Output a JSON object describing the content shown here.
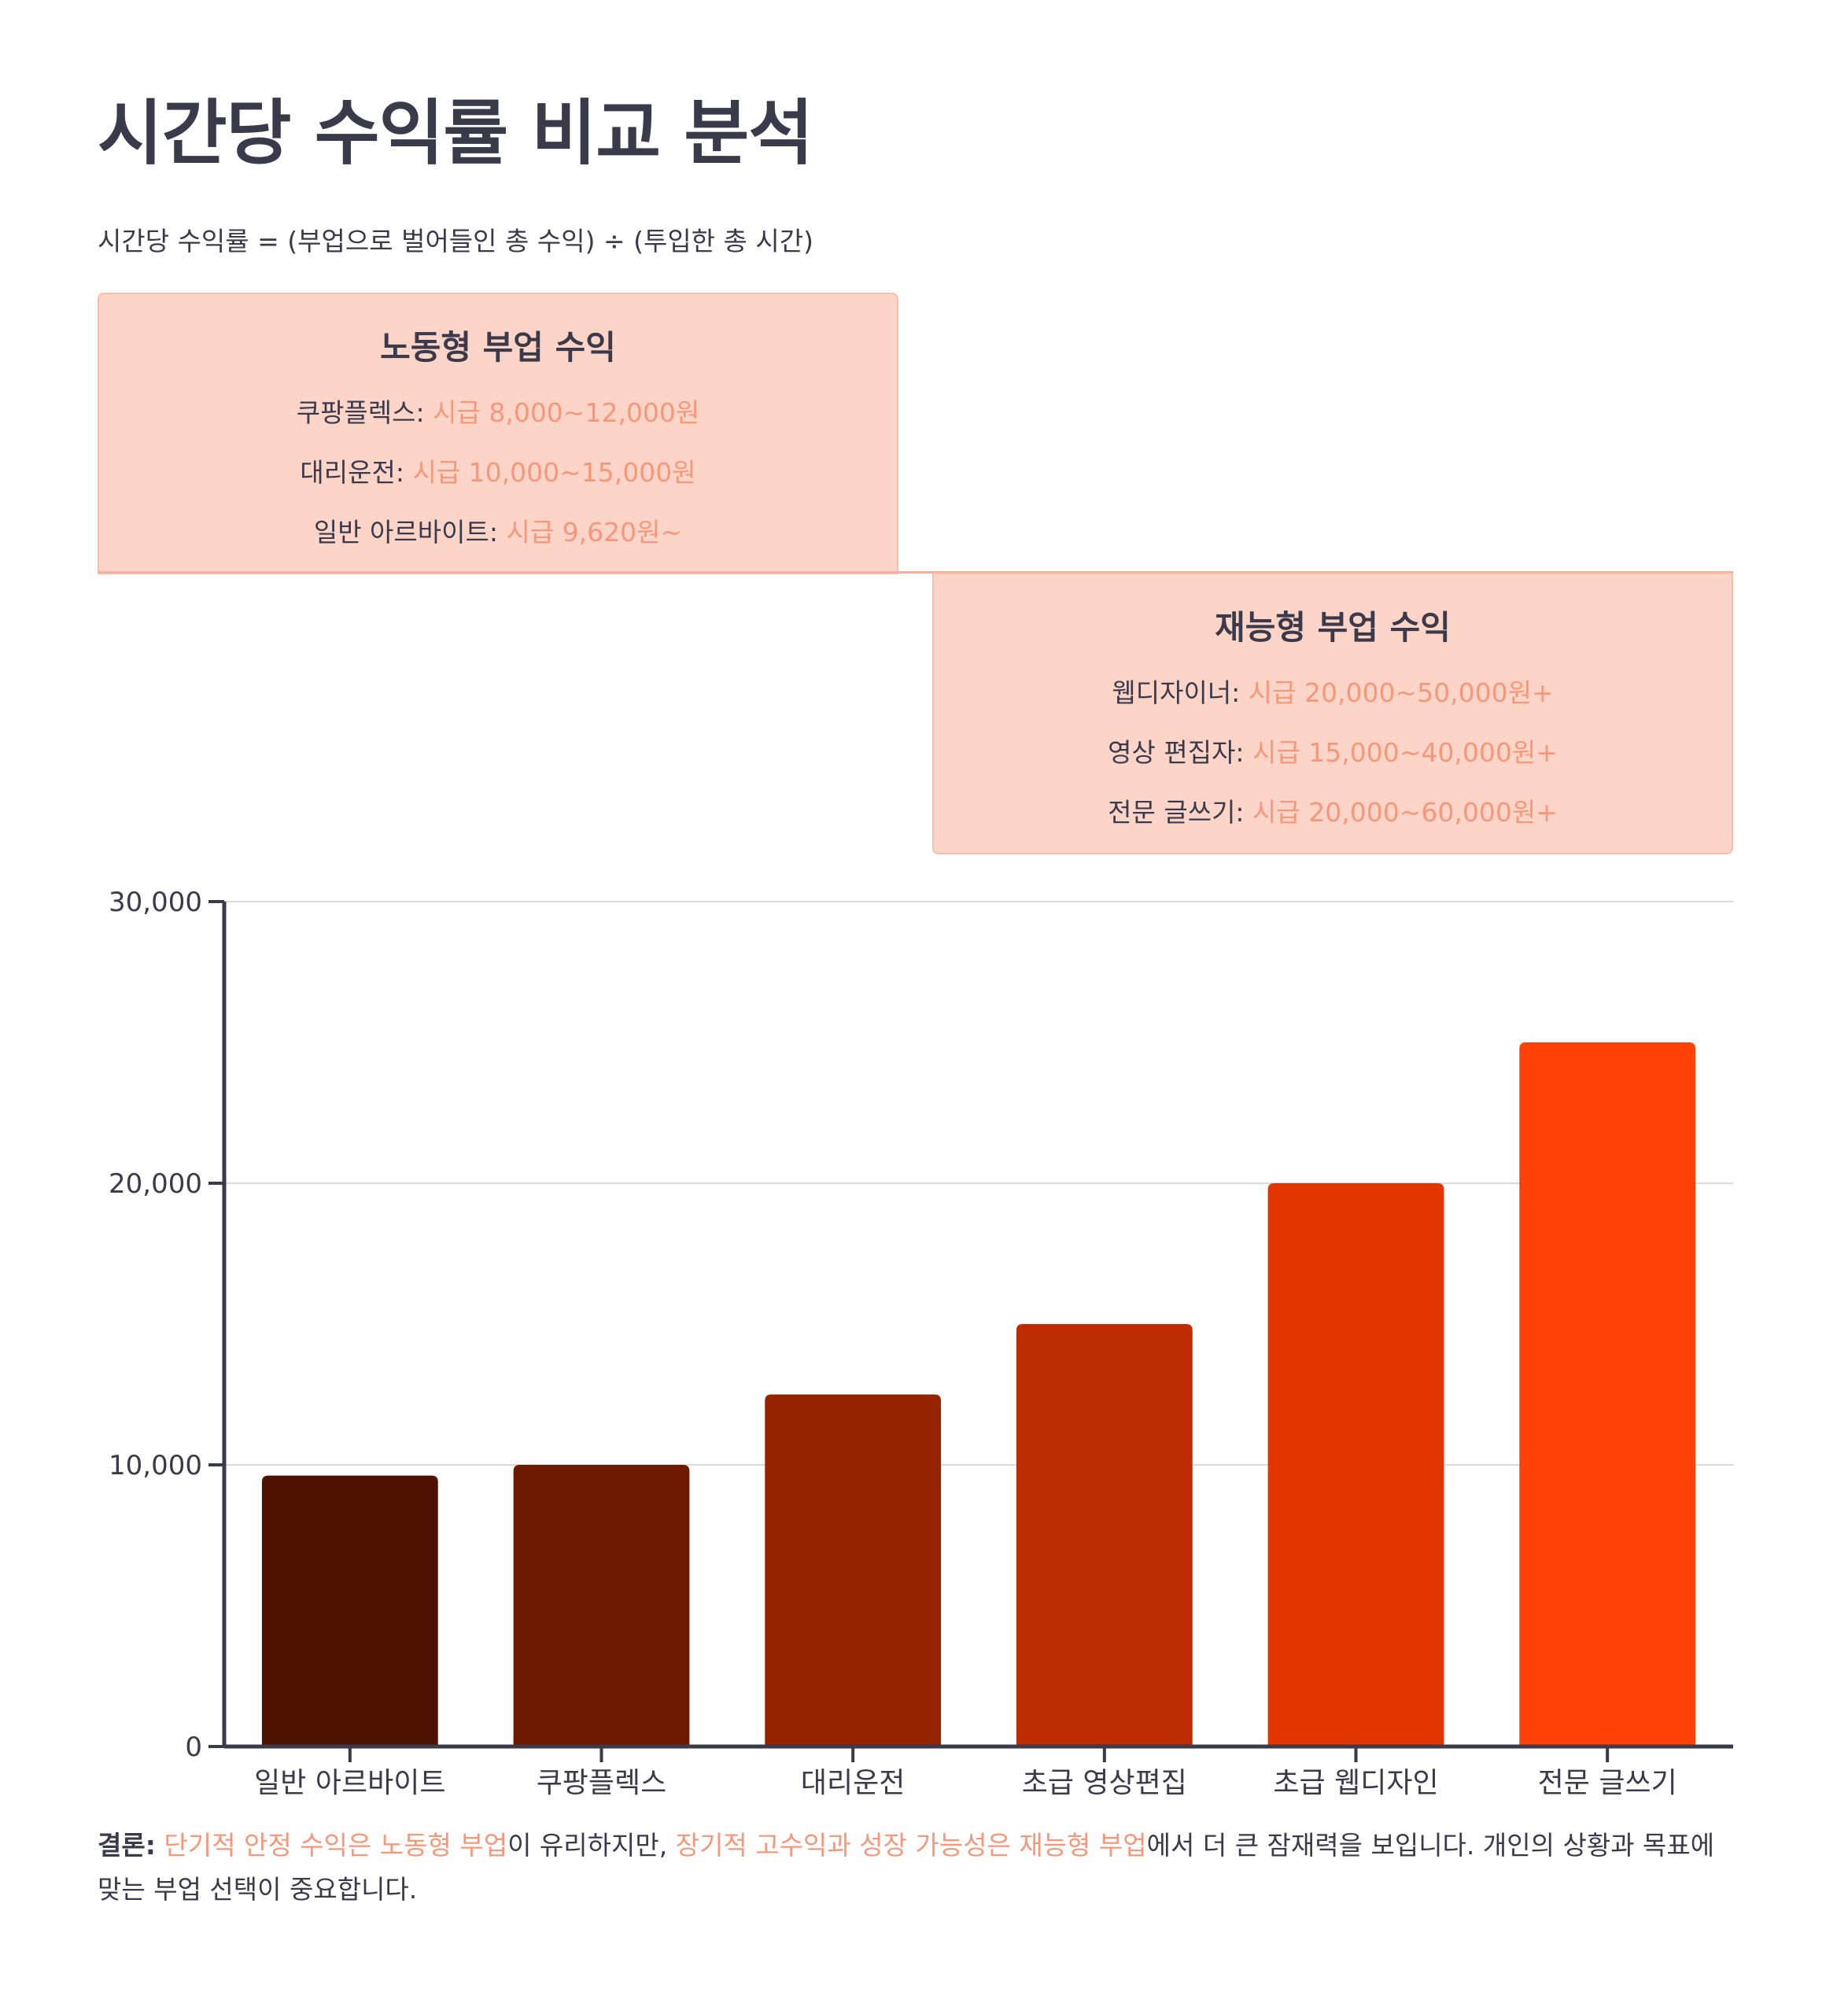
{
  "title": "시간당 수익률 비교 분석",
  "formula": "시간당 수익률 = (부업으로 벌어들인 총 수익) ÷ (투입한 총 시간)",
  "labor_card": {
    "title": "노동형 부업 수익",
    "items": [
      {
        "label": "쿠팡플렉스: ",
        "value": "시급 8,000~12,000원"
      },
      {
        "label": "대리운전: ",
        "value": "시급 10,000~15,000원"
      },
      {
        "label": "일반 아르바이트: ",
        "value": "시급 9,620원~"
      }
    ]
  },
  "talent_card": {
    "title": "재능형 부업 수익",
    "items": [
      {
        "label": "웹디자이너: ",
        "value": "시급 20,000~50,000원+"
      },
      {
        "label": "영상 편집자: ",
        "value": "시급 15,000~40,000원+"
      },
      {
        "label": "전문 글쓰기: ",
        "value": "시급 20,000~60,000원+"
      }
    ]
  },
  "colors": {
    "card_bg": "#fdd5c8",
    "highlight": "#f7977a",
    "text": "#3b3a4a",
    "axis": "#3b3a4a",
    "grid": "#d9d9d9"
  },
  "chart_data": {
    "type": "bar",
    "categories": [
      "일반 아르바이트",
      "쿠팡플렉스",
      "대리운전",
      "초급 영상편집",
      "초급 웹디자인",
      "전문 글쓰기"
    ],
    "values": [
      9620,
      10000,
      12500,
      15000,
      20000,
      25000
    ],
    "bar_colors": [
      "#4d1200",
      "#6e1a00",
      "#962300",
      "#bd2c00",
      "#e33500",
      "#ff4107"
    ],
    "ylim": [
      0,
      30000
    ],
    "yticks": [
      0,
      10000,
      20000,
      30000
    ],
    "ytick_labels": [
      "0",
      "10,000",
      "20,000",
      "30,000"
    ],
    "grid": true,
    "title": "",
    "xlabel": "",
    "ylabel": ""
  },
  "conclusion": {
    "lead": "결론:",
    "parts": [
      {
        "text": " ",
        "hl": false
      },
      {
        "text": "단기적 안정 수익은 노동형 부업",
        "hl": true
      },
      {
        "text": "이 유리하지만, ",
        "hl": false
      },
      {
        "text": "장기적 고수익과 성장 가능성은 재능형 부업",
        "hl": true
      },
      {
        "text": "에서 더 큰 잠재력을 보입니다. 개인의 상황과 목표에 맞는 부업 선택이 중요합니다.",
        "hl": false
      }
    ]
  }
}
